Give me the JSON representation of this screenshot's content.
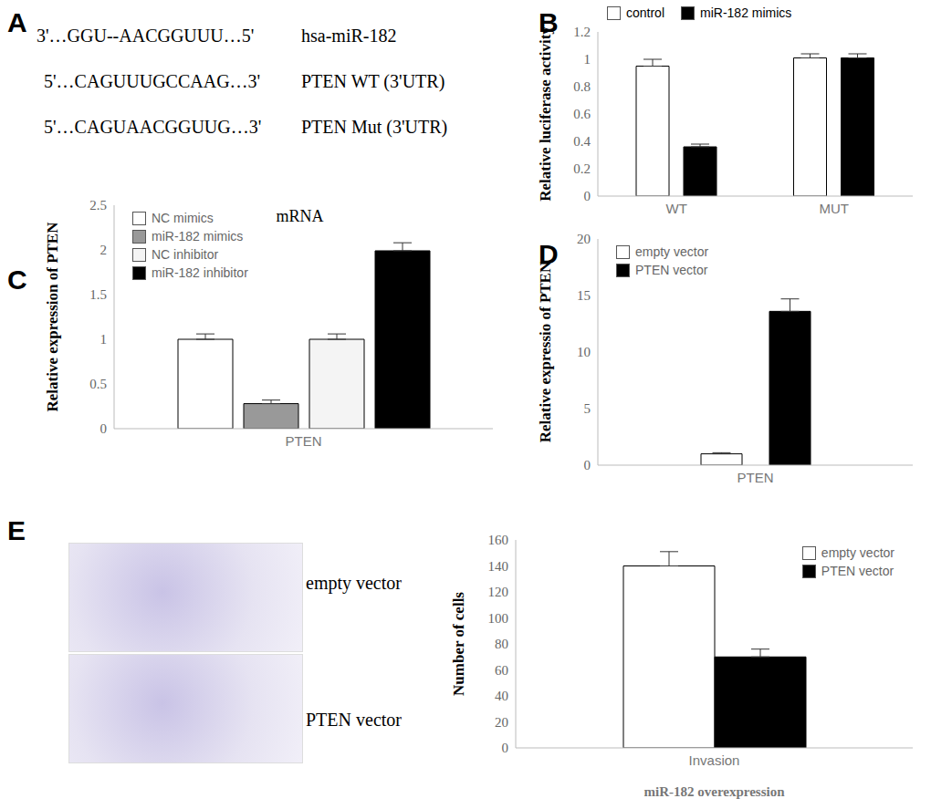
{
  "panel_labels": [
    "A",
    "B",
    "C",
    "D",
    "E"
  ],
  "alignment": {
    "rows": [
      {
        "sequence": "3'…GGU--AACGGUUU…5'",
        "label": "hsa-miR-182"
      },
      {
        "sequence": "5'…CAGUUUGCCAAG…3'",
        "label": "PTEN WT (3'UTR)"
      },
      {
        "sequence": "5'…CAGUAACGGUUG…3'",
        "label": "PTEN Mut (3'UTR)"
      }
    ]
  },
  "chart_data": [
    {
      "type": "bar",
      "ylabel": "Relative luciferase activity",
      "categories": [
        "WT",
        "MUT"
      ],
      "series": [
        {
          "name": "control",
          "color": "#ffffff",
          "values": [
            0.95,
            1.01
          ],
          "errors": [
            0.05,
            0.03
          ]
        },
        {
          "name": "miR-182 mimics",
          "color": "#000000",
          "values": [
            0.36,
            1.01
          ],
          "errors": [
            0.02,
            0.03
          ]
        }
      ],
      "ylim": [
        0,
        1.2
      ],
      "yticks": [
        0,
        0.2,
        0.4,
        0.6,
        0.8,
        1,
        1.2
      ],
      "legend": "top"
    },
    {
      "type": "bar",
      "annotation": "mRNA",
      "ylabel": "Relative expression of PTEN",
      "categories": [
        "PTEN"
      ],
      "series": [
        {
          "name": "NC mimics",
          "color": "#ffffff",
          "values": [
            1.0
          ],
          "errors": [
            0.06
          ]
        },
        {
          "name": "miR-182 mimics",
          "color": "#999999",
          "values": [
            0.28
          ],
          "errors": [
            0.04
          ]
        },
        {
          "name": "NC inhibitor",
          "color": "#f4f4f4",
          "values": [
            1.0
          ],
          "errors": [
            0.06
          ]
        },
        {
          "name": "miR-182 inhibitor",
          "color": "#000000",
          "values": [
            1.99
          ],
          "errors": [
            0.09
          ]
        }
      ],
      "ylim": [
        0,
        2.5
      ],
      "yticks": [
        0,
        0.5,
        1,
        1.5,
        2,
        2.5
      ],
      "legend": "upper left"
    },
    {
      "type": "bar",
      "ylabel": "Relative expressio of PTEN",
      "categories": [
        "PTEN"
      ],
      "series": [
        {
          "name": "empty vector",
          "color": "#ffffff",
          "values": [
            1.0
          ],
          "errors": [
            0.1
          ]
        },
        {
          "name": "PTEN vector",
          "color": "#000000",
          "values": [
            13.6
          ],
          "errors": [
            1.1
          ]
        }
      ],
      "ylim": [
        0,
        20
      ],
      "yticks": [
        0,
        5,
        10,
        15,
        20
      ],
      "legend": "upper left"
    },
    {
      "type": "bar",
      "xlabel": "miR-182 overexpression",
      "ylabel": "Number of cells",
      "categories": [
        "Invasion"
      ],
      "series": [
        {
          "name": "empty vector",
          "color": "#ffffff",
          "values": [
            140
          ],
          "errors": [
            11
          ]
        },
        {
          "name": "PTEN vector",
          "color": "#000000",
          "values": [
            70
          ],
          "errors": [
            6
          ]
        }
      ],
      "ylim": [
        0,
        160
      ],
      "yticks": [
        0,
        20,
        40,
        60,
        80,
        100,
        120,
        140,
        160
      ],
      "legend": "upper right"
    }
  ],
  "images": {
    "labels": [
      "empty vector",
      "PTEN vector"
    ]
  }
}
